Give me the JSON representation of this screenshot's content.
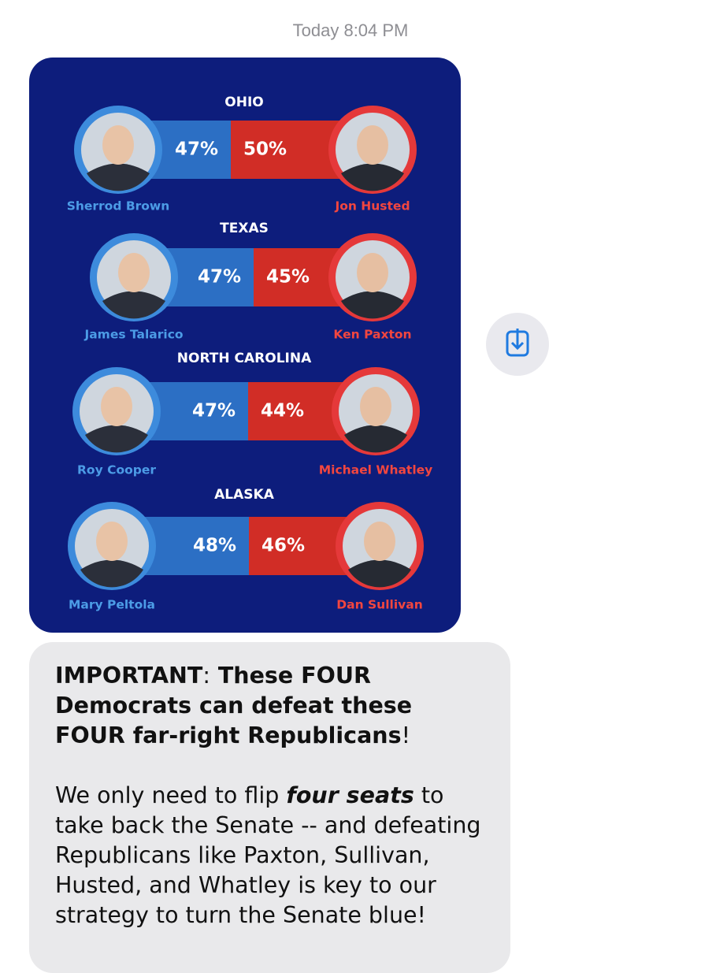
{
  "header": {
    "day": "Today",
    "time": "8:04 PM"
  },
  "races": [
    {
      "state": "OHIO",
      "democrat": {
        "name": "Sherrod Brown",
        "percent": "47%"
      },
      "republican": {
        "name": "Jon Husted",
        "percent": "50%"
      }
    },
    {
      "state": "TEXAS",
      "democrat": {
        "name": "James Talarico",
        "percent": "47%"
      },
      "republican": {
        "name": "Ken Paxton",
        "percent": "45%"
      }
    },
    {
      "state": "NORTH CAROLINA",
      "democrat": {
        "name": "Roy Cooper",
        "percent": "47%"
      },
      "republican": {
        "name": "Michael Whatley",
        "percent": "44%"
      }
    },
    {
      "state": "ALASKA",
      "democrat": {
        "name": "Mary Peltola",
        "percent": "48%"
      },
      "republican": {
        "name": "Dan Sullivan",
        "percent": "46%"
      }
    }
  ],
  "message": {
    "paragraphs": [
      [
        {
          "text": "IMPORTANT",
          "style": "bold"
        },
        {
          "text": ":",
          "style": "normal"
        },
        {
          "text": " These FOUR Democrats can defeat these FOUR far-right Republicans",
          "style": "bold"
        },
        {
          "text": "!",
          "style": "normal"
        }
      ],
      [
        {
          "text": "We only need to flip ",
          "style": "normal"
        },
        {
          "text": "four seats",
          "style": "bold-italic"
        },
        {
          "text": " to take back the Senate -- and defeating Republicans like Paxton, Sullivan, Husted, and Whatley is key to our strategy to turn the Senate blue!",
          "style": "normal"
        }
      ]
    ]
  }
}
